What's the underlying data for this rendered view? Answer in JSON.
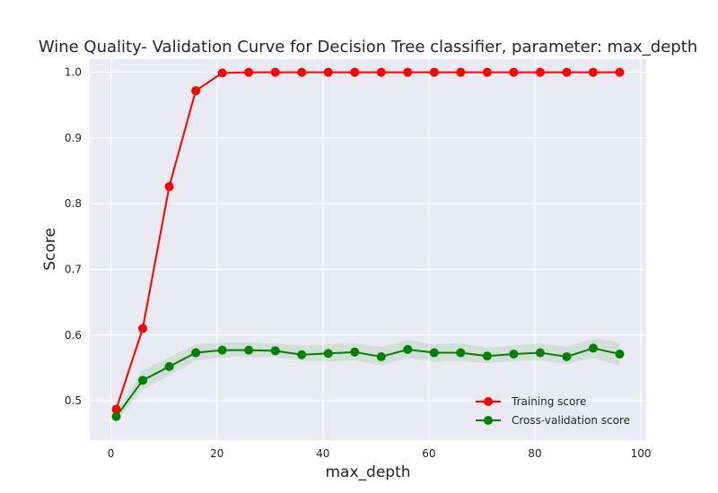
{
  "chart_data": {
    "type": "line",
    "title": "Wine Quality- Validation Curve for Decision Tree classifier, parameter: max_depth",
    "xlabel": "max_depth",
    "ylabel": "Score",
    "xlim": [
      -4,
      101
    ],
    "ylim": [
      0.44,
      1.02
    ],
    "x_ticks": [
      0,
      20,
      40,
      60,
      80,
      100
    ],
    "y_ticks": [
      0.5,
      0.6,
      0.7,
      0.8,
      0.9,
      1.0
    ],
    "x_tick_labels": [
      "0",
      "20",
      "40",
      "60",
      "80",
      "100"
    ],
    "y_tick_labels": [
      "0.5",
      "0.6",
      "0.7",
      "0.8",
      "0.9",
      "1.0"
    ],
    "grid": true,
    "legend_position": "bottom-right",
    "background_color": "#eaeaf2",
    "grid_color": "#ffffff",
    "x": [
      1,
      6,
      11,
      16,
      21,
      26,
      31,
      36,
      41,
      46,
      51,
      56,
      61,
      66,
      71,
      76,
      81,
      86,
      91,
      96
    ],
    "series": [
      {
        "name": "Training score",
        "color": "#ff0000",
        "values": [
          0.487,
          0.61,
          0.826,
          0.972,
          0.999,
          1.0,
          1.0,
          1.0,
          1.0,
          1.0,
          1.0,
          1.0,
          1.0,
          1.0,
          1.0,
          1.0,
          1.0,
          1.0,
          1.0,
          1.0
        ]
      },
      {
        "name": "Cross-validation score",
        "color": "#008000",
        "values": [
          0.476,
          0.531,
          0.552,
          0.573,
          0.577,
          0.577,
          0.576,
          0.57,
          0.572,
          0.574,
          0.567,
          0.578,
          0.573,
          0.573,
          0.568,
          0.571,
          0.573,
          0.567,
          0.58,
          0.571
        ],
        "band_lower": [
          0.469,
          0.516,
          0.539,
          0.561,
          0.566,
          0.567,
          0.567,
          0.561,
          0.559,
          0.561,
          0.554,
          0.565,
          0.559,
          0.56,
          0.557,
          0.56,
          0.561,
          0.556,
          0.565,
          0.553
        ],
        "band_upper": [
          0.483,
          0.547,
          0.566,
          0.586,
          0.589,
          0.589,
          0.587,
          0.584,
          0.586,
          0.587,
          0.582,
          0.592,
          0.586,
          0.587,
          0.581,
          0.584,
          0.587,
          0.582,
          0.595,
          0.589
        ]
      }
    ]
  }
}
